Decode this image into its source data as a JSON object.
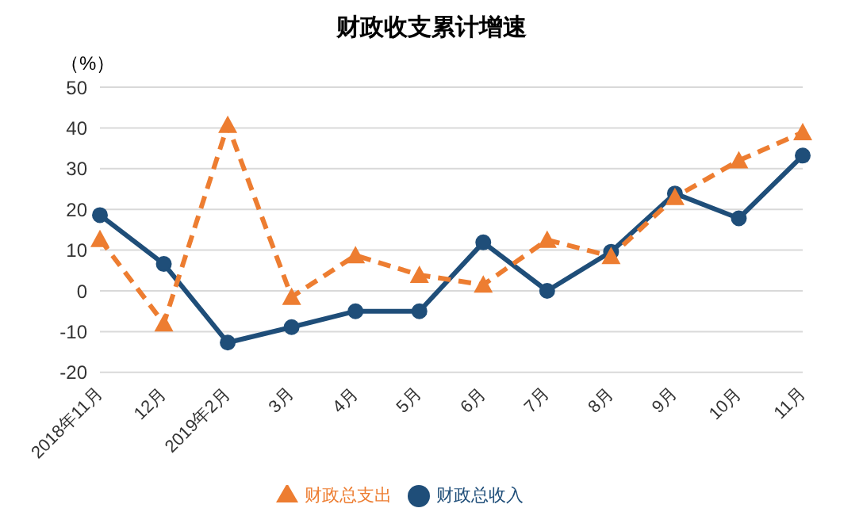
{
  "chart_data": {
    "type": "line",
    "title": "财政收支累计增速",
    "ylabel": "（%）",
    "categories": [
      "2018年11月",
      "12月",
      "2019年2月",
      "3月",
      "4月",
      "5月",
      "6月",
      "7月",
      "8月",
      "9月",
      "10月",
      "11月"
    ],
    "series": [
      {
        "name": "财政总收入",
        "color": "#1f4e79",
        "marker": "circle",
        "line_style": "solid",
        "values": [
          18.6,
          6.6,
          -12.7,
          -8.9,
          -5,
          -5,
          11.9,
          0,
          9.6,
          23.9,
          17.8,
          33.2
        ]
      },
      {
        "name": "财政总支出",
        "color": "#ed7d31",
        "marker": "triangle",
        "line_style": "dashed",
        "values": [
          12.7,
          -8,
          40.7,
          -1.5,
          8.7,
          3.9,
          1.5,
          12.5,
          8.5,
          23,
          32,
          38.9
        ]
      }
    ],
    "ylim": [
      -20,
      50
    ],
    "yticks": [
      -20,
      -10,
      0,
      10,
      20,
      30,
      40,
      50
    ],
    "grid": "y",
    "legend": "bottom"
  }
}
